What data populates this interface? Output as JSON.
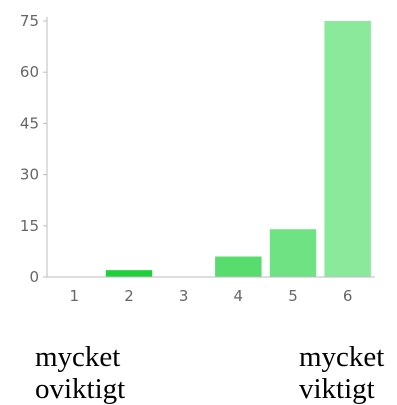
{
  "chart_data": {
    "type": "bar",
    "categories": [
      "1",
      "2",
      "3",
      "4",
      "5",
      "6"
    ],
    "values": [
      0,
      2,
      0,
      6,
      14,
      75
    ],
    "bar_colors": [
      "#00c41d",
      "#1fd03a",
      "#3dd656",
      "#57dc6d",
      "#6fe283",
      "#8ae99a"
    ],
    "yticks": [
      0,
      15,
      30,
      45,
      60,
      75
    ],
    "ylim": [
      0,
      75
    ],
    "grid": false
  },
  "scale_labels": {
    "left": {
      "line1": "mycket",
      "line2": "oviktigt"
    },
    "right": {
      "line1": "mycket",
      "line2": "viktigt"
    }
  }
}
